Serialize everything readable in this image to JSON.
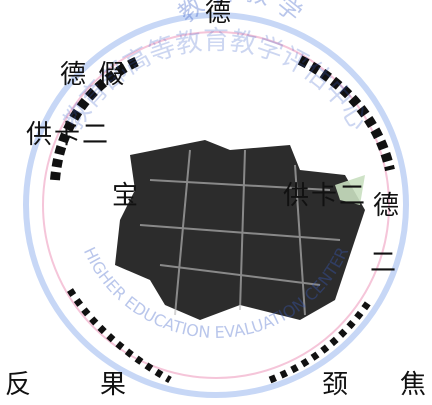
{
  "seal": {
    "arc_text_top": "教育部高等教育教学评估中心",
    "arc_text_bottom": "HIGHER EDUCATION EVALUATION CENTER",
    "inner_arc": "教 育 教 学"
  },
  "glyphs": {
    "g1": "德",
    "g2": "德 假",
    "g3": "供卡二",
    "g4": "宝",
    "g5": "供卡二",
    "g6": "德",
    "g7": "二",
    "g8": "反",
    "g9": "果",
    "g10": "颈",
    "g11": "焦"
  },
  "colors": {
    "seal_blue": "#3a5fc8",
    "seal_pink": "#f2b6cf",
    "ink": "#111111",
    "green": "#c9dfc0"
  }
}
